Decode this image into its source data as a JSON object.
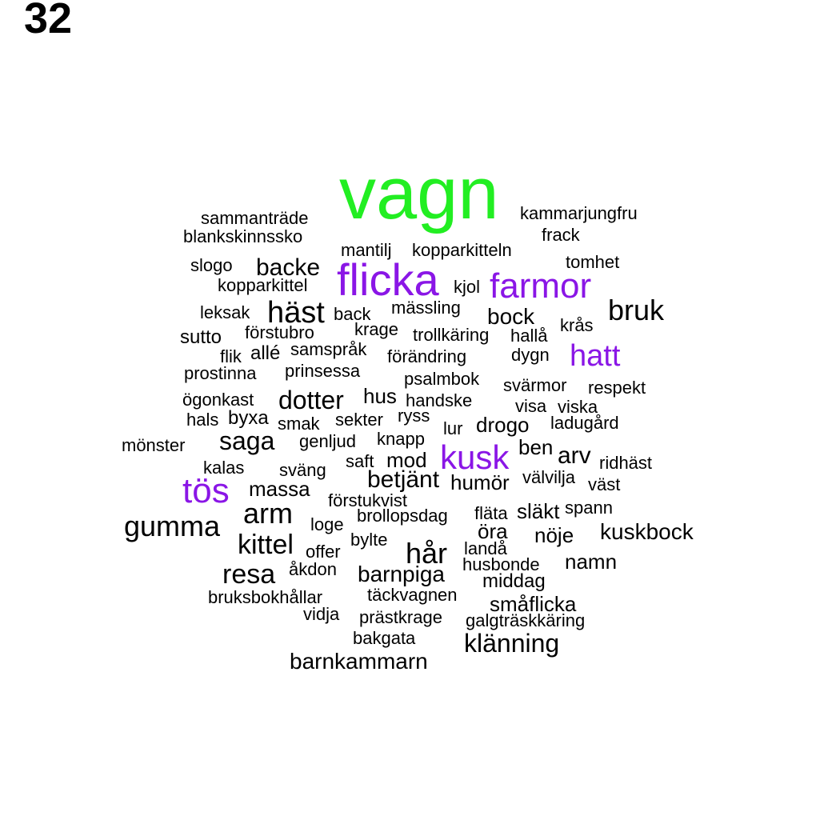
{
  "panel_number": "32",
  "colors": {
    "top": "#22ee22",
    "highlight": "#8a16e6",
    "normal": "#000000"
  },
  "words": [
    {
      "text": "vagn",
      "weight": 100,
      "color": "top"
    },
    {
      "text": "flicka",
      "weight": 58,
      "color": "highlight"
    },
    {
      "text": "farmor",
      "weight": 45,
      "color": "highlight"
    },
    {
      "text": "kusk",
      "weight": 42,
      "color": "highlight"
    },
    {
      "text": "tös",
      "weight": 45,
      "color": "highlight"
    },
    {
      "text": "hatt",
      "weight": 40,
      "color": "highlight"
    },
    {
      "text": "kammarjungfru",
      "weight": 20,
      "color": "normal"
    },
    {
      "text": "sammanträde",
      "weight": 20,
      "color": "normal"
    },
    {
      "text": "blankskinnssko",
      "weight": 20,
      "color": "normal"
    },
    {
      "text": "frack",
      "weight": 20,
      "color": "normal"
    },
    {
      "text": "mantilj",
      "weight": 20,
      "color": "normal"
    },
    {
      "text": "kopparkitteln",
      "weight": 20,
      "color": "normal"
    },
    {
      "text": "tomhet",
      "weight": 20,
      "color": "normal"
    },
    {
      "text": "slogo",
      "weight": 20,
      "color": "normal"
    },
    {
      "text": "backe",
      "weight": 27,
      "color": "normal"
    },
    {
      "text": "kopparkittel",
      "weight": 20,
      "color": "normal"
    },
    {
      "text": "kjol",
      "weight": 20,
      "color": "normal"
    },
    {
      "text": "bruk",
      "weight": 33,
      "color": "normal"
    },
    {
      "text": "leksak",
      "weight": 20,
      "color": "normal"
    },
    {
      "text": "häst",
      "weight": 33,
      "color": "normal"
    },
    {
      "text": "back",
      "weight": 20,
      "color": "normal"
    },
    {
      "text": "mässling",
      "weight": 20,
      "color": "normal"
    },
    {
      "text": "bock",
      "weight": 25,
      "color": "normal"
    },
    {
      "text": "krås",
      "weight": 20,
      "color": "normal"
    },
    {
      "text": "sutto",
      "weight": 20,
      "color": "normal"
    },
    {
      "text": "förstubro",
      "weight": 20,
      "color": "normal"
    },
    {
      "text": "krage",
      "weight": 20,
      "color": "normal"
    },
    {
      "text": "trollkäring",
      "weight": 20,
      "color": "normal"
    },
    {
      "text": "hallå",
      "weight": 20,
      "color": "normal"
    },
    {
      "text": "flik",
      "weight": 20,
      "color": "normal"
    },
    {
      "text": "allé",
      "weight": 20,
      "color": "normal"
    },
    {
      "text": "samspråk",
      "weight": 20,
      "color": "normal"
    },
    {
      "text": "förändring",
      "weight": 20,
      "color": "normal"
    },
    {
      "text": "dygn",
      "weight": 20,
      "color": "normal"
    },
    {
      "text": "prostinna",
      "weight": 20,
      "color": "normal"
    },
    {
      "text": "prinsessa",
      "weight": 20,
      "color": "normal"
    },
    {
      "text": "psalmbok",
      "weight": 20,
      "color": "normal"
    },
    {
      "text": "svärmor",
      "weight": 20,
      "color": "normal"
    },
    {
      "text": "respekt",
      "weight": 20,
      "color": "normal"
    },
    {
      "text": "ögonkast",
      "weight": 20,
      "color": "normal"
    },
    {
      "text": "dotter",
      "weight": 27,
      "color": "normal"
    },
    {
      "text": "hus",
      "weight": 22,
      "color": "normal"
    },
    {
      "text": "handske",
      "weight": 20,
      "color": "normal"
    },
    {
      "text": "visa",
      "weight": 20,
      "color": "normal"
    },
    {
      "text": "viska",
      "weight": 20,
      "color": "normal"
    },
    {
      "text": "hals",
      "weight": 20,
      "color": "normal"
    },
    {
      "text": "byxa",
      "weight": 20,
      "color": "normal"
    },
    {
      "text": "smak",
      "weight": 20,
      "color": "normal"
    },
    {
      "text": "sekter",
      "weight": 20,
      "color": "normal"
    },
    {
      "text": "ryss",
      "weight": 20,
      "color": "normal"
    },
    {
      "text": "lur",
      "weight": 20,
      "color": "normal"
    },
    {
      "text": "drogo",
      "weight": 22,
      "color": "normal"
    },
    {
      "text": "ladugård",
      "weight": 20,
      "color": "normal"
    },
    {
      "text": "mönster",
      "weight": 20,
      "color": "normal"
    },
    {
      "text": "saga",
      "weight": 27,
      "color": "normal"
    },
    {
      "text": "genljud",
      "weight": 20,
      "color": "normal"
    },
    {
      "text": "knapp",
      "weight": 20,
      "color": "normal"
    },
    {
      "text": "ben",
      "weight": 22,
      "color": "normal"
    },
    {
      "text": "arv",
      "weight": 27,
      "color": "normal"
    },
    {
      "text": "ridhäst",
      "weight": 20,
      "color": "normal"
    },
    {
      "text": "kalas",
      "weight": 20,
      "color": "normal"
    },
    {
      "text": "sväng",
      "weight": 20,
      "color": "normal"
    },
    {
      "text": "saft",
      "weight": 20,
      "color": "normal"
    },
    {
      "text": "mod",
      "weight": 22,
      "color": "normal"
    },
    {
      "text": "betjänt",
      "weight": 27,
      "color": "normal"
    },
    {
      "text": "humör",
      "weight": 22,
      "color": "normal"
    },
    {
      "text": "välvilja",
      "weight": 20,
      "color": "normal"
    },
    {
      "text": "väst",
      "weight": 20,
      "color": "normal"
    },
    {
      "text": "massa",
      "weight": 22,
      "color": "normal"
    },
    {
      "text": "förstukvist",
      "weight": 20,
      "color": "normal"
    },
    {
      "text": "arm",
      "weight": 35,
      "color": "normal"
    },
    {
      "text": "brollopsdag",
      "weight": 20,
      "color": "normal"
    },
    {
      "text": "fläta",
      "weight": 20,
      "color": "normal"
    },
    {
      "text": "släkt",
      "weight": 22,
      "color": "normal"
    },
    {
      "text": "spann",
      "weight": 20,
      "color": "normal"
    },
    {
      "text": "gumma",
      "weight": 32,
      "color": "normal"
    },
    {
      "text": "loge",
      "weight": 20,
      "color": "normal"
    },
    {
      "text": "öra",
      "weight": 22,
      "color": "normal"
    },
    {
      "text": "nöje",
      "weight": 22,
      "color": "normal"
    },
    {
      "text": "kuskbock",
      "weight": 25,
      "color": "normal"
    },
    {
      "text": "kittel",
      "weight": 32,
      "color": "normal"
    },
    {
      "text": "bylte",
      "weight": 20,
      "color": "normal"
    },
    {
      "text": "offer",
      "weight": 20,
      "color": "normal"
    },
    {
      "text": "hår",
      "weight": 33,
      "color": "normal"
    },
    {
      "text": "landå",
      "weight": 20,
      "color": "normal"
    },
    {
      "text": "namn",
      "weight": 25,
      "color": "normal"
    },
    {
      "text": "husbonde",
      "weight": 20,
      "color": "normal"
    },
    {
      "text": "resa",
      "weight": 33,
      "color": "normal"
    },
    {
      "text": "åkdon",
      "weight": 20,
      "color": "normal"
    },
    {
      "text": "barnpiga",
      "weight": 25,
      "color": "normal"
    },
    {
      "text": "middag",
      "weight": 22,
      "color": "normal"
    },
    {
      "text": "bruksbokhållar",
      "weight": 20,
      "color": "normal"
    },
    {
      "text": "täckvagnen",
      "weight": 20,
      "color": "normal"
    },
    {
      "text": "småflicka",
      "weight": 22,
      "color": "normal"
    },
    {
      "text": "vidja",
      "weight": 20,
      "color": "normal"
    },
    {
      "text": "prästkrage",
      "weight": 20,
      "color": "normal"
    },
    {
      "text": "galgträskkäring",
      "weight": 20,
      "color": "normal"
    },
    {
      "text": "bakgata",
      "weight": 20,
      "color": "normal"
    },
    {
      "text": "klänning",
      "weight": 30,
      "color": "normal"
    },
    {
      "text": "barnkammarn",
      "weight": 25,
      "color": "normal"
    }
  ]
}
